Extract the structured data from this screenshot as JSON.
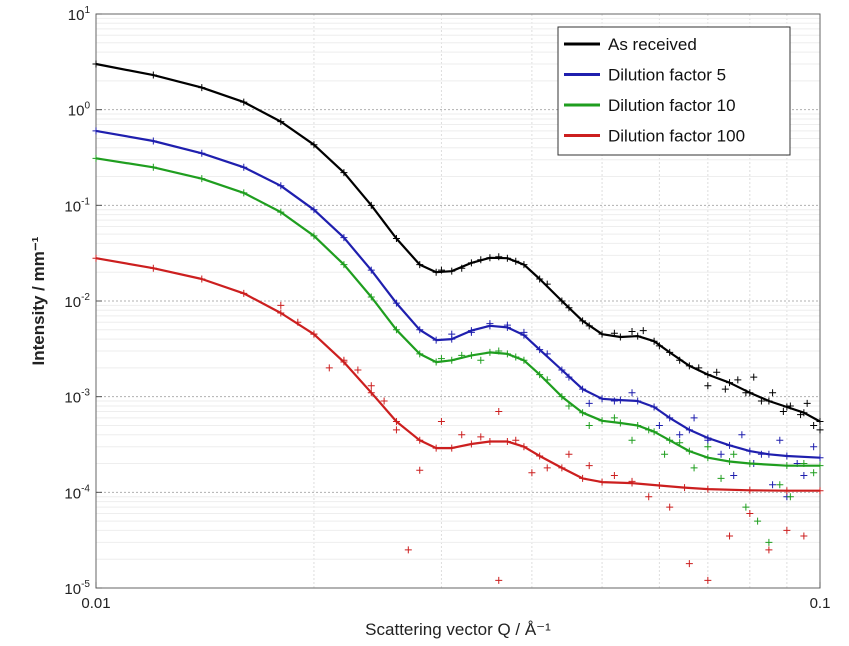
{
  "chart_data": {
    "type": "line",
    "xlabel": "Scattering vector Q / Å⁻¹",
    "ylabel": "Intensity / mm⁻¹",
    "x_scale": "log",
    "y_scale": "log",
    "xlim": [
      0.01,
      0.1
    ],
    "ylim": [
      1e-05,
      10
    ],
    "grid": true,
    "legend_position": "top-right",
    "x_ticks": [
      {
        "value": 0.01,
        "label": "0.01"
      },
      {
        "value": 0.1,
        "label": "0.1"
      }
    ],
    "y_ticks": [
      {
        "value": 10,
        "base": "10",
        "exp": "1"
      },
      {
        "value": 1,
        "base": "10",
        "exp": "0"
      },
      {
        "value": 0.1,
        "base": "10",
        "exp": "-1"
      },
      {
        "value": 0.01,
        "base": "10",
        "exp": "-2"
      },
      {
        "value": 0.001,
        "base": "10",
        "exp": "-3"
      },
      {
        "value": 0.0001,
        "base": "10",
        "exp": "-4"
      },
      {
        "value": 1e-05,
        "base": "10",
        "exp": "-5"
      }
    ],
    "series": [
      {
        "name": "As received",
        "color": "#000000",
        "fit": [
          [
            0.01,
            3.0
          ],
          [
            0.012,
            2.3
          ],
          [
            0.014,
            1.7
          ],
          [
            0.016,
            1.2
          ],
          [
            0.018,
            0.75
          ],
          [
            0.02,
            0.43
          ],
          [
            0.022,
            0.22
          ],
          [
            0.024,
            0.1
          ],
          [
            0.026,
            0.045
          ],
          [
            0.028,
            0.024
          ],
          [
            0.0295,
            0.02
          ],
          [
            0.031,
            0.0205
          ],
          [
            0.033,
            0.025
          ],
          [
            0.035,
            0.0283
          ],
          [
            0.037,
            0.028
          ],
          [
            0.039,
            0.024
          ],
          [
            0.041,
            0.017
          ],
          [
            0.044,
            0.01
          ],
          [
            0.047,
            0.0062
          ],
          [
            0.05,
            0.0045
          ],
          [
            0.053,
            0.0042
          ],
          [
            0.056,
            0.0043
          ],
          [
            0.059,
            0.0038
          ],
          [
            0.062,
            0.0029
          ],
          [
            0.066,
            0.0021
          ],
          [
            0.07,
            0.0017
          ],
          [
            0.075,
            0.0014
          ],
          [
            0.08,
            0.0011
          ],
          [
            0.085,
            0.0009
          ],
          [
            0.09,
            0.00078
          ],
          [
            0.095,
            0.00068
          ],
          [
            0.1,
            0.00055
          ]
        ],
        "points": [
          [
            0.03,
            0.021
          ],
          [
            0.032,
            0.022
          ],
          [
            0.034,
            0.027
          ],
          [
            0.036,
            0.029
          ],
          [
            0.038,
            0.026
          ],
          [
            0.042,
            0.015
          ],
          [
            0.045,
            0.0085
          ],
          [
            0.048,
            0.0055
          ],
          [
            0.052,
            0.0046
          ],
          [
            0.055,
            0.0048
          ],
          [
            0.057,
            0.0049
          ],
          [
            0.06,
            0.0034
          ],
          [
            0.064,
            0.0024
          ],
          [
            0.068,
            0.002
          ],
          [
            0.07,
            0.0013
          ],
          [
            0.072,
            0.0018
          ],
          [
            0.074,
            0.0012
          ],
          [
            0.077,
            0.0015
          ],
          [
            0.079,
            0.0011
          ],
          [
            0.081,
            0.0016
          ],
          [
            0.083,
            0.0009
          ],
          [
            0.086,
            0.0011
          ],
          [
            0.089,
            0.0007
          ],
          [
            0.091,
            0.0008
          ],
          [
            0.094,
            0.00065
          ],
          [
            0.096,
            0.00085
          ],
          [
            0.098,
            0.0005
          ],
          [
            0.1,
            0.00045
          ]
        ]
      },
      {
        "name": "Dilution factor 5",
        "color": "#1f1fae",
        "fit": [
          [
            0.01,
            0.6
          ],
          [
            0.012,
            0.47
          ],
          [
            0.014,
            0.35
          ],
          [
            0.016,
            0.25
          ],
          [
            0.018,
            0.16
          ],
          [
            0.02,
            0.09
          ],
          [
            0.022,
            0.046
          ],
          [
            0.024,
            0.021
          ],
          [
            0.026,
            0.0095
          ],
          [
            0.028,
            0.005
          ],
          [
            0.0295,
            0.0039
          ],
          [
            0.031,
            0.004
          ],
          [
            0.033,
            0.0049
          ],
          [
            0.035,
            0.0055
          ],
          [
            0.037,
            0.0053
          ],
          [
            0.039,
            0.0044
          ],
          [
            0.041,
            0.0031
          ],
          [
            0.044,
            0.0019
          ],
          [
            0.047,
            0.0012
          ],
          [
            0.05,
            0.00095
          ],
          [
            0.053,
            0.00092
          ],
          [
            0.056,
            0.0009
          ],
          [
            0.059,
            0.00078
          ],
          [
            0.062,
            0.0006
          ],
          [
            0.066,
            0.00045
          ],
          [
            0.07,
            0.00037
          ],
          [
            0.075,
            0.00031
          ],
          [
            0.08,
            0.00027
          ],
          [
            0.085,
            0.00025
          ],
          [
            0.09,
            0.00024
          ],
          [
            0.1,
            0.00023
          ]
        ],
        "points": [
          [
            0.031,
            0.0045
          ],
          [
            0.033,
            0.0047
          ],
          [
            0.035,
            0.0058
          ],
          [
            0.037,
            0.0056
          ],
          [
            0.039,
            0.0047
          ],
          [
            0.042,
            0.0028
          ],
          [
            0.045,
            0.0016
          ],
          [
            0.048,
            0.00085
          ],
          [
            0.052,
            0.0009
          ],
          [
            0.055,
            0.0011
          ],
          [
            0.06,
            0.0005
          ],
          [
            0.064,
            0.0004
          ],
          [
            0.067,
            0.0006
          ],
          [
            0.07,
            0.00035
          ],
          [
            0.073,
            0.00025
          ],
          [
            0.076,
            0.00015
          ],
          [
            0.078,
            0.0004
          ],
          [
            0.081,
            0.0002
          ],
          [
            0.083,
            0.00025
          ],
          [
            0.086,
            0.00012
          ],
          [
            0.088,
            0.00035
          ],
          [
            0.09,
            9e-05
          ],
          [
            0.093,
            0.0002
          ],
          [
            0.095,
            0.00015
          ],
          [
            0.098,
            0.0003
          ]
        ]
      },
      {
        "name": "Dilution factor 10",
        "color": "#1f9e1f",
        "fit": [
          [
            0.01,
            0.31
          ],
          [
            0.012,
            0.25
          ],
          [
            0.014,
            0.19
          ],
          [
            0.016,
            0.135
          ],
          [
            0.018,
            0.085
          ],
          [
            0.02,
            0.048
          ],
          [
            0.022,
            0.024
          ],
          [
            0.024,
            0.011
          ],
          [
            0.026,
            0.005
          ],
          [
            0.028,
            0.0028
          ],
          [
            0.0295,
            0.0023
          ],
          [
            0.031,
            0.0024
          ],
          [
            0.033,
            0.0027
          ],
          [
            0.035,
            0.0029
          ],
          [
            0.037,
            0.0028
          ],
          [
            0.039,
            0.0024
          ],
          [
            0.041,
            0.0017
          ],
          [
            0.044,
            0.001
          ],
          [
            0.047,
            0.00068
          ],
          [
            0.05,
            0.00056
          ],
          [
            0.053,
            0.00053
          ],
          [
            0.056,
            0.0005
          ],
          [
            0.059,
            0.00043
          ],
          [
            0.062,
            0.00035
          ],
          [
            0.066,
            0.00027
          ],
          [
            0.07,
            0.00023
          ],
          [
            0.075,
            0.00021
          ],
          [
            0.08,
            0.0002
          ],
          [
            0.09,
            0.00019
          ],
          [
            0.1,
            0.00019
          ]
        ],
        "points": [
          [
            0.03,
            0.0025
          ],
          [
            0.032,
            0.0027
          ],
          [
            0.034,
            0.0024
          ],
          [
            0.036,
            0.003
          ],
          [
            0.038,
            0.0026
          ],
          [
            0.042,
            0.0015
          ],
          [
            0.045,
            0.0008
          ],
          [
            0.048,
            0.0005
          ],
          [
            0.052,
            0.0006
          ],
          [
            0.055,
            0.00035
          ],
          [
            0.058,
            0.00045
          ],
          [
            0.061,
            0.00025
          ],
          [
            0.064,
            0.00033
          ],
          [
            0.067,
            0.00018
          ],
          [
            0.07,
            0.0003
          ],
          [
            0.073,
            0.00014
          ],
          [
            0.076,
            0.00025
          ],
          [
            0.079,
            7e-05
          ],
          [
            0.082,
            5e-05
          ],
          [
            0.085,
            3e-05
          ],
          [
            0.088,
            0.00012
          ],
          [
            0.091,
            9e-05
          ],
          [
            0.095,
            0.0002
          ],
          [
            0.098,
            0.00016
          ]
        ]
      },
      {
        "name": "Dilution factor 100",
        "color": "#cc1f1f",
        "fit": [
          [
            0.01,
            0.028
          ],
          [
            0.012,
            0.022
          ],
          [
            0.014,
            0.017
          ],
          [
            0.016,
            0.012
          ],
          [
            0.018,
            0.0075
          ],
          [
            0.02,
            0.0045
          ],
          [
            0.022,
            0.0023
          ],
          [
            0.024,
            0.0011
          ],
          [
            0.026,
            0.00055
          ],
          [
            0.028,
            0.00035
          ],
          [
            0.0295,
            0.00029
          ],
          [
            0.031,
            0.00029
          ],
          [
            0.033,
            0.00032
          ],
          [
            0.035,
            0.00034
          ],
          [
            0.037,
            0.00034
          ],
          [
            0.039,
            0.0003
          ],
          [
            0.041,
            0.00024
          ],
          [
            0.044,
            0.00018
          ],
          [
            0.047,
            0.00014
          ],
          [
            0.05,
            0.000128
          ],
          [
            0.055,
            0.000125
          ],
          [
            0.06,
            0.000118
          ],
          [
            0.065,
            0.000112
          ],
          [
            0.07,
            0.000108
          ],
          [
            0.08,
            0.000105
          ],
          [
            0.09,
            0.000104
          ],
          [
            0.1,
            0.000104
          ]
        ],
        "points": [
          [
            0.018,
            0.009
          ],
          [
            0.019,
            0.006
          ],
          [
            0.02,
            0.0045
          ],
          [
            0.021,
            0.002
          ],
          [
            0.022,
            0.0024
          ],
          [
            0.023,
            0.0019
          ],
          [
            0.024,
            0.0013
          ],
          [
            0.025,
            0.0009
          ],
          [
            0.026,
            0.00045
          ],
          [
            0.027,
            2.5e-05
          ],
          [
            0.028,
            0.00017
          ],
          [
            0.03,
            0.00055
          ],
          [
            0.032,
            0.0004
          ],
          [
            0.034,
            0.00038
          ],
          [
            0.036,
            0.0007
          ],
          [
            0.038,
            0.00035
          ],
          [
            0.04,
            0.00016
          ],
          [
            0.042,
            0.00018
          ],
          [
            0.045,
            0.00025
          ],
          [
            0.048,
            0.00019
          ],
          [
            0.052,
            0.00015
          ],
          [
            0.055,
            0.00013
          ],
          [
            0.036,
            1.2e-05
          ],
          [
            0.058,
            9e-05
          ],
          [
            0.062,
            7e-05
          ],
          [
            0.066,
            1.8e-05
          ],
          [
            0.07,
            1.2e-05
          ],
          [
            0.075,
            3.5e-05
          ],
          [
            0.08,
            6e-05
          ],
          [
            0.085,
            2.5e-05
          ],
          [
            0.09,
            4e-05
          ],
          [
            0.095,
            3.5e-05
          ]
        ]
      }
    ]
  }
}
